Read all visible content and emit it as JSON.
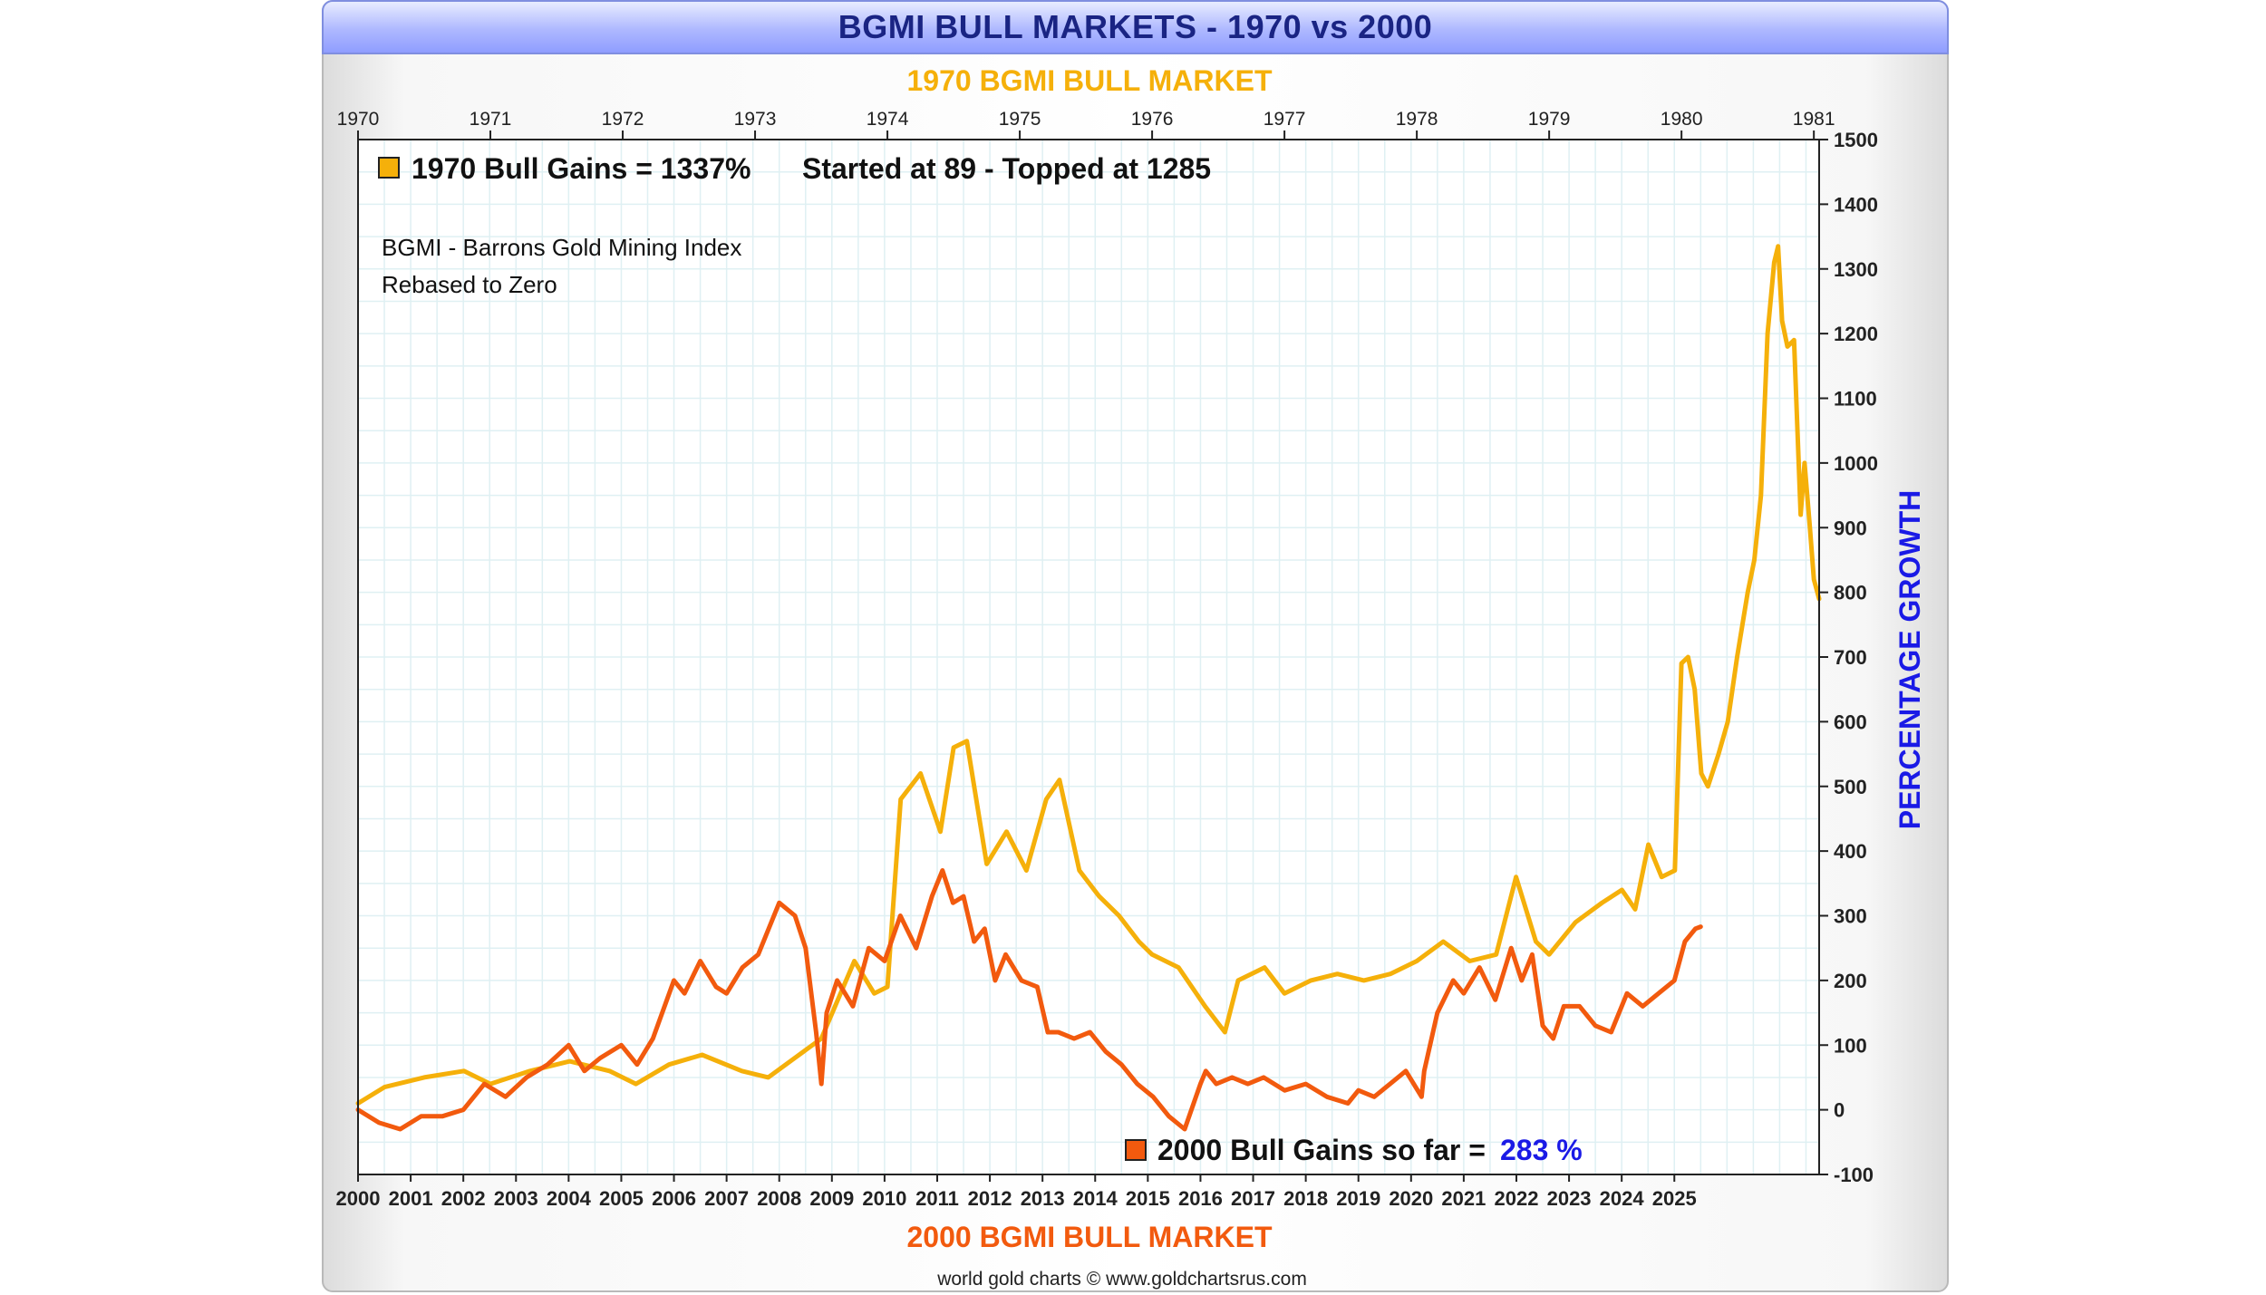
{
  "title": "BGMI BULL MARKETS - 1970 vs 2000",
  "footer": "world gold charts © www.goldchartsrus.com",
  "colors": {
    "series1970": "#f5b00a",
    "series2000": "#f25a0e",
    "accent_blue": "#1a1ae6",
    "title_blue": "#1a2483",
    "grid": "#dff0f3"
  },
  "chart_data": {
    "type": "line",
    "top_axis_title": "1970 BGMI BULL MARKET",
    "bottom_axis_title": "2000 BGMI BULL MARKET",
    "ylabel": "PERCENTAGE GROWTH",
    "ylim": [
      -100,
      1500
    ],
    "yticks": [
      "1500",
      "1400",
      "1300",
      "1200",
      "1100",
      "1000",
      "900",
      "800",
      "700",
      "600",
      "500",
      "400",
      "300",
      "200",
      "100",
      "0",
      "-100"
    ],
    "top_xticks": [
      "1970",
      "1971",
      "1972",
      "1973",
      "1974",
      "1975",
      "1976",
      "1977",
      "1978",
      "1979",
      "1980",
      "1981"
    ],
    "bottom_xticks": [
      "2000",
      "2001",
      "2002",
      "2003",
      "2004",
      "2005",
      "2006",
      "2007",
      "2008",
      "2009",
      "2010",
      "2011",
      "2012",
      "2013",
      "2014",
      "2015",
      "2016",
      "2017",
      "2018",
      "2019",
      "2020",
      "2021",
      "2022",
      "2023",
      "2024",
      "2025"
    ],
    "annotations": {
      "legend_1970": "1970 Bull Gains = 1337%",
      "started_topped": "Started at 89 - Topped at 1285",
      "index_note_1": "BGMI - Barrons Gold Mining Index",
      "index_note_2": "Rebased to Zero",
      "legend_2000": "2000 Bull Gains so far =",
      "legend_2000_value": "283 %"
    },
    "series": [
      {
        "name": "1970 BGMI (top axis years)",
        "color": "#f5b00a",
        "x": [
          1970.0,
          1970.2,
          1970.5,
          1970.8,
          1971.0,
          1971.3,
          1971.6,
          1971.9,
          1972.1,
          1972.35,
          1972.6,
          1972.9,
          1973.1,
          1973.3,
          1973.5,
          1973.75,
          1973.9,
          1974.0,
          1974.1,
          1974.25,
          1974.4,
          1974.5,
          1974.6,
          1974.75,
          1974.9,
          1975.05,
          1975.2,
          1975.3,
          1975.45,
          1975.6,
          1975.75,
          1975.9,
          1976.0,
          1976.2,
          1976.4,
          1976.55,
          1976.65,
          1976.75,
          1976.85,
          1977.0,
          1977.2,
          1977.4,
          1977.6,
          1977.8,
          1978.0,
          1978.2,
          1978.4,
          1978.6,
          1978.75,
          1978.9,
          1979.0,
          1979.2,
          1979.4,
          1979.55,
          1979.65,
          1979.75,
          1979.85,
          1979.95,
          1980.0,
          1980.05,
          1980.1,
          1980.15,
          1980.2,
          1980.28,
          1980.35,
          1980.42,
          1980.5,
          1980.55,
          1980.6,
          1980.65,
          1980.7,
          1980.73,
          1980.76,
          1980.8,
          1980.85,
          1980.9,
          1980.93,
          1980.97,
          1981.0,
          1981.04
        ],
        "y": [
          10,
          35,
          50,
          60,
          40,
          60,
          75,
          60,
          40,
          70,
          85,
          60,
          50,
          80,
          110,
          230,
          180,
          190,
          480,
          520,
          430,
          560,
          570,
          380,
          430,
          370,
          480,
          510,
          370,
          330,
          300,
          260,
          240,
          220,
          160,
          120,
          200,
          210,
          220,
          180,
          200,
          210,
          200,
          210,
          230,
          260,
          230,
          240,
          360,
          260,
          240,
          290,
          320,
          340,
          310,
          410,
          360,
          370,
          690,
          700,
          650,
          520,
          500,
          550,
          600,
          700,
          800,
          850,
          950,
          1200,
          1310,
          1335,
          1220,
          1180,
          1190,
          920,
          1000,
          900,
          820,
          790
        ]
      },
      {
        "name": "2000 BGMI (bottom axis years)",
        "color": "#f25a0e",
        "x": [
          2000.0,
          2000.4,
          2000.8,
          2001.2,
          2001.6,
          2002.0,
          2002.4,
          2002.8,
          2003.2,
          2003.6,
          2004.0,
          2004.3,
          2004.6,
          2005.0,
          2005.3,
          2005.6,
          2006.0,
          2006.2,
          2006.5,
          2006.8,
          2007.0,
          2007.3,
          2007.6,
          2008.0,
          2008.3,
          2008.5,
          2008.7,
          2008.8,
          2008.9,
          2009.1,
          2009.4,
          2009.7,
          2010.0,
          2010.3,
          2010.6,
          2010.9,
          2011.1,
          2011.3,
          2011.5,
          2011.7,
          2011.9,
          2012.1,
          2012.3,
          2012.6,
          2012.9,
          2013.1,
          2013.3,
          2013.6,
          2013.9,
          2014.2,
          2014.5,
          2014.8,
          2015.1,
          2015.4,
          2015.7,
          2016.0,
          2016.1,
          2016.3,
          2016.6,
          2016.9,
          2017.2,
          2017.6,
          2018.0,
          2018.4,
          2018.8,
          2019.0,
          2019.3,
          2019.6,
          2019.9,
          2020.2,
          2020.25,
          2020.5,
          2020.8,
          2021.0,
          2021.3,
          2021.6,
          2021.9,
          2022.1,
          2022.3,
          2022.5,
          2022.7,
          2022.9,
          2023.2,
          2023.5,
          2023.8,
          2024.1,
          2024.4,
          2024.7,
          2025.0,
          2025.2,
          2025.4,
          2025.5
        ],
        "y": [
          0,
          -20,
          -30,
          -10,
          -10,
          0,
          40,
          20,
          50,
          70,
          100,
          60,
          80,
          100,
          70,
          110,
          200,
          180,
          230,
          190,
          180,
          220,
          240,
          320,
          300,
          250,
          120,
          40,
          150,
          200,
          160,
          250,
          230,
          300,
          250,
          330,
          370,
          320,
          330,
          260,
          280,
          200,
          240,
          200,
          190,
          120,
          120,
          110,
          120,
          90,
          70,
          40,
          20,
          -10,
          -30,
          40,
          60,
          40,
          50,
          40,
          50,
          30,
          40,
          20,
          10,
          30,
          20,
          40,
          60,
          20,
          60,
          150,
          200,
          180,
          220,
          170,
          250,
          200,
          240,
          130,
          110,
          160,
          160,
          130,
          120,
          180,
          160,
          180,
          200,
          260,
          280,
          283
        ]
      }
    ]
  }
}
